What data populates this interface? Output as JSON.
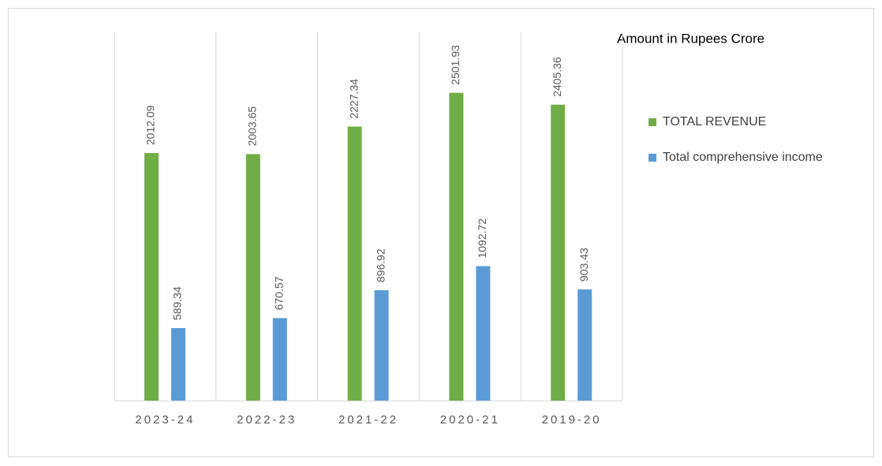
{
  "chart_data": {
    "type": "bar",
    "title": "Amount in Rupees Crore",
    "categories": [
      "2023-24",
      "2022-23",
      "2021-22",
      "2020-21",
      "2019-20"
    ],
    "series": [
      {
        "name": "TOTAL REVENUE",
        "color": "#70ad47",
        "values": [
          2012.09,
          2003.65,
          2227.34,
          2501.93,
          2405.36
        ]
      },
      {
        "name": "Total comprehensive income",
        "color": "#5b9bd5",
        "values": [
          589.34,
          670.57,
          896.92,
          1092.72,
          903.43
        ]
      }
    ],
    "ylim": [
      0,
      3000
    ],
    "legend": "right"
  }
}
